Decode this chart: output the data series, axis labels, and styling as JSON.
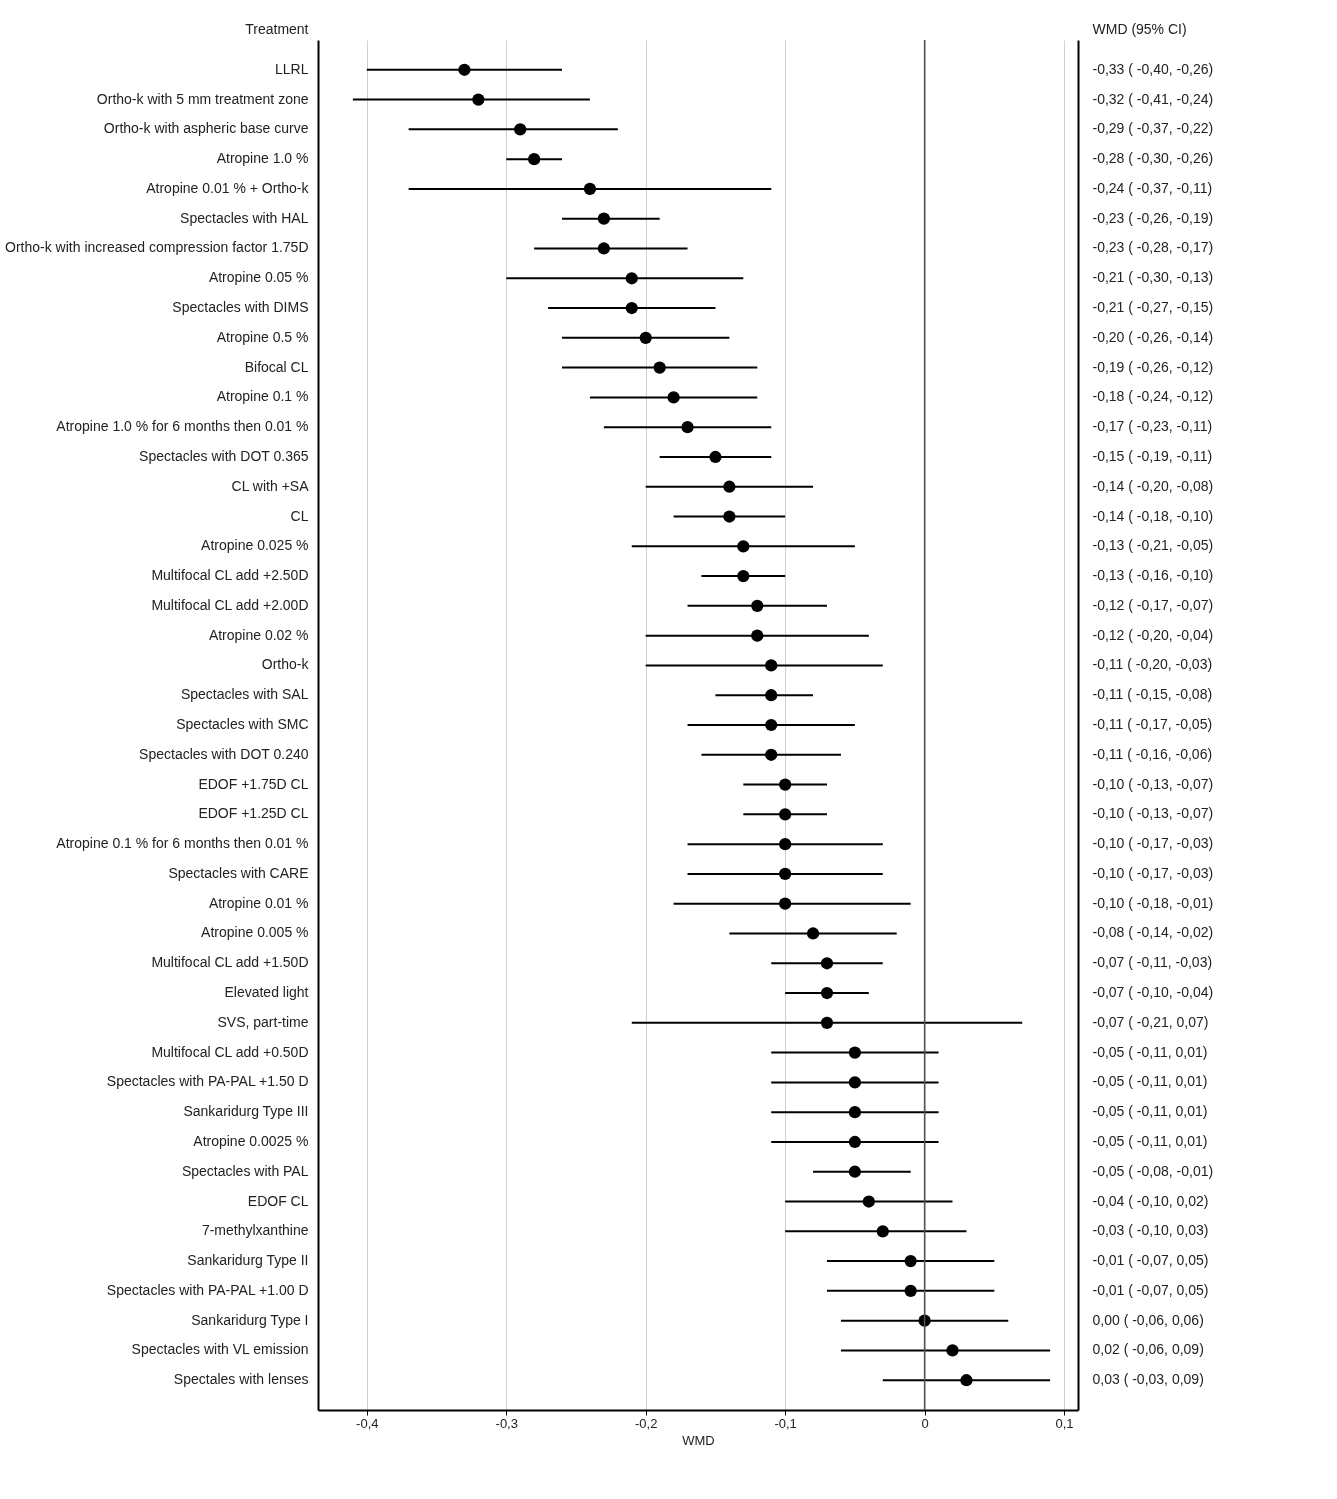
{
  "chart_data": {
    "type": "scatter",
    "orientation": "horizontal",
    "ylabel": "Treatment",
    "y2label": "WMD (95% CI)",
    "xlabel": "WMD",
    "categories": [
      "LLRL",
      "Ortho-k with 5 mm treatment zone",
      "Ortho-k with aspheric base curve",
      "Atropine 1.0 %",
      "Atropine 0.01 % + Ortho-k",
      "Spectacles with HAL",
      "Ortho-k with increased compression factor 1.75D",
      "Atropine 0.05 %",
      "Spectacles with DIMS",
      "Atropine 0.5 %",
      "Bifocal CL",
      "Atropine 0.1 %",
      "Atropine 1.0 % for 6 months then 0.01 %",
      "Spectacles with DOT 0.365",
      "CL with +SA",
      "CL",
      "Atropine 0.025 %",
      "Multifocal CL add +2.50D",
      "Multifocal CL add +2.00D",
      "Atropine 0.02 %",
      "Ortho-k",
      "Spectacles with SAL",
      "Spectacles with SMC",
      "Spectacles with DOT 0.240",
      "EDOF +1.75D CL",
      "EDOF +1.25D CL",
      "Atropine 0.1 % for 6 months then 0.01 %",
      "Spectacles with CARE",
      "Atropine 0.01 %",
      "Atropine 0.005 %",
      "Multifocal CL add +1.50D",
      "Elevated light",
      "SVS, part-time",
      "Multifocal CL add +0.50D",
      "Spectacles with PA-PAL +1.50 D",
      "Sankaridurg Type III",
      "Atropine 0.0025 %",
      "Spectacles with PAL",
      "EDOF CL",
      "7-methylxanthine",
      "Sankaridurg Type II",
      "Spectacles with PA-PAL +1.00 D",
      "Sankaridurg Type I",
      "Spectacles with VL emission",
      "Spectales with lenses"
    ],
    "series": [
      {
        "color": "#000000",
        "values": [
          -0.33,
          -0.32,
          -0.29,
          -0.28,
          -0.24,
          -0.23,
          -0.23,
          -0.21,
          -0.21,
          -0.2,
          -0.19,
          -0.18,
          -0.17,
          -0.15,
          -0.14,
          -0.14,
          -0.13,
          -0.13,
          -0.12,
          -0.12,
          -0.11,
          -0.11,
          -0.11,
          -0.11,
          -0.1,
          -0.1,
          -0.1,
          -0.1,
          -0.1,
          -0.08,
          -0.07,
          -0.07,
          -0.07,
          -0.05,
          -0.05,
          -0.05,
          -0.05,
          -0.05,
          -0.04,
          -0.03,
          -0.01,
          -0.01,
          0.0,
          0.02,
          0.03
        ],
        "errors": [
          [
            -0.4,
            -0.26
          ],
          [
            -0.41,
            -0.24
          ],
          [
            -0.37,
            -0.22
          ],
          [
            -0.3,
            -0.26
          ],
          [
            -0.37,
            -0.11
          ],
          [
            -0.26,
            -0.19
          ],
          [
            -0.28,
            -0.17
          ],
          [
            -0.3,
            -0.13
          ],
          [
            -0.27,
            -0.15
          ],
          [
            -0.26,
            -0.14
          ],
          [
            -0.26,
            -0.12
          ],
          [
            -0.24,
            -0.12
          ],
          [
            -0.23,
            -0.11
          ],
          [
            -0.19,
            -0.11
          ],
          [
            -0.2,
            -0.08
          ],
          [
            -0.18,
            -0.1
          ],
          [
            -0.21,
            -0.05
          ],
          [
            -0.16,
            -0.1
          ],
          [
            -0.17,
            -0.07
          ],
          [
            -0.2,
            -0.04
          ],
          [
            -0.2,
            -0.03
          ],
          [
            -0.15,
            -0.08
          ],
          [
            -0.17,
            -0.05
          ],
          [
            -0.16,
            -0.06
          ],
          [
            -0.13,
            -0.07
          ],
          [
            -0.13,
            -0.07
          ],
          [
            -0.17,
            -0.03
          ],
          [
            -0.17,
            -0.03
          ],
          [
            -0.18,
            -0.01
          ],
          [
            -0.14,
            -0.02
          ],
          [
            -0.11,
            -0.03
          ],
          [
            -0.1,
            -0.04
          ],
          [
            -0.21,
            0.07
          ],
          [
            -0.11,
            0.01
          ],
          [
            -0.11,
            0.01
          ],
          [
            -0.11,
            0.01
          ],
          [
            -0.11,
            0.01
          ],
          [
            -0.08,
            -0.01
          ],
          [
            -0.1,
            0.02
          ],
          [
            -0.1,
            0.03
          ],
          [
            -0.07,
            0.05
          ],
          [
            -0.07,
            0.05
          ],
          [
            -0.06,
            0.06
          ],
          [
            -0.06,
            0.09
          ],
          [
            -0.03,
            0.09
          ]
        ],
        "value_labels": [
          "-0,33 ( -0,40, -0,26)",
          "-0,32 ( -0,41, -0,24)",
          "-0,29 ( -0,37, -0,22)",
          "-0,28 ( -0,30, -0,26)",
          "-0,24 ( -0,37, -0,11)",
          "-0,23 ( -0,26, -0,19)",
          "-0,23 ( -0,28, -0,17)",
          "-0,21 ( -0,30, -0,13)",
          "-0,21 ( -0,27, -0,15)",
          "-0,20 ( -0,26, -0,14)",
          "-0,19 ( -0,26, -0,12)",
          "-0,18 ( -0,24, -0,12)",
          "-0,17 ( -0,23, -0,11)",
          "-0,15 ( -0,19, -0,11)",
          "-0,14 ( -0,20, -0,08)",
          "-0,14 ( -0,18, -0,10)",
          "-0,13 ( -0,21, -0,05)",
          "-0,13 ( -0,16, -0,10)",
          "-0,12 ( -0,17, -0,07)",
          "-0,12 ( -0,20, -0,04)",
          "-0,11 ( -0,20, -0,03)",
          "-0,11 ( -0,15, -0,08)",
          "-0,11 ( -0,17, -0,05)",
          "-0,11 ( -0,16, -0,06)",
          "-0,10 ( -0,13, -0,07)",
          "-0,10 ( -0,13, -0,07)",
          "-0,10 ( -0,17, -0,03)",
          "-0,10 ( -0,17, -0,03)",
          "-0,10 ( -0,18, -0,01)",
          "-0,08 ( -0,14, -0,02)",
          "-0,07 ( -0,11, -0,03)",
          "-0,07 ( -0,10, -0,04)",
          "-0,07 ( -0,21, 0,07)",
          "-0,05 ( -0,11, 0,01)",
          "-0,05 ( -0,11, 0,01)",
          "-0,05 ( -0,11, 0,01)",
          "-0,05 ( -0,11, 0,01)",
          "-0,05 ( -0,08, -0,01)",
          "-0,04 ( -0,10, 0,02)",
          "-0,03 ( -0,10, 0,03)",
          "-0,01 ( -0,07, 0,05)",
          "-0,01 ( -0,07, 0,05)",
          "0,00 ( -0,06, 0,06)",
          "0,02 ( -0,06, 0,09)",
          "0,03 ( -0,03, 0,09)"
        ]
      }
    ],
    "xlim": [
      -0.435,
      0.11
    ],
    "xticks": [
      {
        "value": -0.4,
        "label": "-0,4"
      },
      {
        "value": -0.3,
        "label": "-0,3"
      },
      {
        "value": -0.2,
        "label": "-0,2"
      },
      {
        "value": -0.1,
        "label": "-0,1"
      },
      0,
      {
        "value": 0.1,
        "label": "0,1"
      }
    ],
    "grid": "x",
    "marker": "circle",
    "ref_lines": [
      {
        "axis": "x",
        "value": 0,
        "color": "#555555"
      }
    ]
  }
}
